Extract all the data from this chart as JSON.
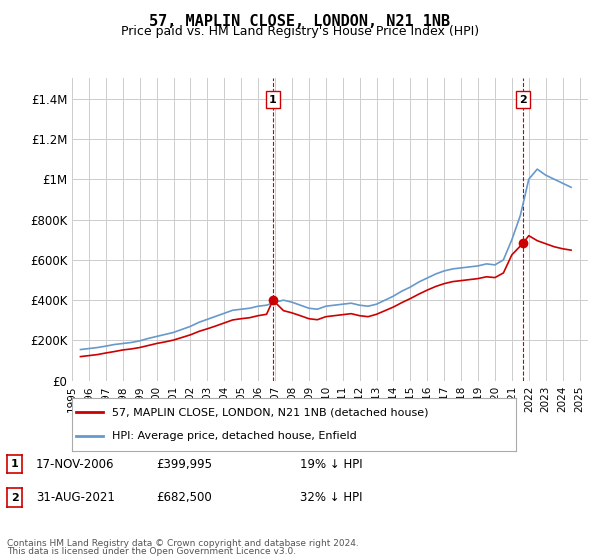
{
  "title": "57, MAPLIN CLOSE, LONDON, N21 1NB",
  "subtitle": "Price paid vs. HM Land Registry's House Price Index (HPI)",
  "red_label": "57, MAPLIN CLOSE, LONDON, N21 1NB (detached house)",
  "blue_label": "HPI: Average price, detached house, Enfield",
  "annotation1": {
    "num": "1",
    "date": "17-NOV-2006",
    "price": "£399,995",
    "pct": "19% ↓ HPI",
    "x_year": 2006.88
  },
  "annotation2": {
    "num": "2",
    "date": "31-AUG-2021",
    "price": "£682,500",
    "pct": "32% ↓ HPI",
    "x_year": 2021.66
  },
  "footer1": "Contains HM Land Registry data © Crown copyright and database right 2024.",
  "footer2": "This data is licensed under the Open Government Licence v3.0.",
  "ylim": [
    0,
    1500000
  ],
  "yticks": [
    0,
    200000,
    400000,
    600000,
    800000,
    1000000,
    1200000,
    1400000
  ],
  "ytick_labels": [
    "£0",
    "£200K",
    "£400K",
    "£600K",
    "£800K",
    "£1M",
    "£1.2M",
    "£1.4M"
  ],
  "xlim_start": 1995.0,
  "xlim_end": 2025.5,
  "red_color": "#cc0000",
  "blue_color": "#6699cc",
  "grid_color": "#cccccc",
  "background_color": "#ffffff",
  "vline_color": "#cc0000",
  "hpi_data": {
    "years": [
      1995.5,
      1996.0,
      1996.5,
      1997.0,
      1997.5,
      1998.0,
      1998.5,
      1999.0,
      1999.5,
      2000.0,
      2000.5,
      2001.0,
      2001.5,
      2002.0,
      2002.5,
      2003.0,
      2003.5,
      2004.0,
      2004.5,
      2005.0,
      2005.5,
      2006.0,
      2006.5,
      2007.0,
      2007.5,
      2008.0,
      2008.5,
      2009.0,
      2009.5,
      2010.0,
      2010.5,
      2011.0,
      2011.5,
      2012.0,
      2012.5,
      2013.0,
      2013.5,
      2014.0,
      2014.5,
      2015.0,
      2015.5,
      2016.0,
      2016.5,
      2017.0,
      2017.5,
      2018.0,
      2018.5,
      2019.0,
      2019.5,
      2020.0,
      2020.5,
      2021.0,
      2021.5,
      2022.0,
      2022.5,
      2023.0,
      2023.5,
      2024.0,
      2024.5
    ],
    "values": [
      155000,
      160000,
      165000,
      172000,
      180000,
      185000,
      190000,
      198000,
      210000,
      220000,
      230000,
      240000,
      255000,
      270000,
      290000,
      305000,
      320000,
      335000,
      350000,
      355000,
      360000,
      370000,
      375000,
      390000,
      400000,
      390000,
      375000,
      360000,
      355000,
      370000,
      375000,
      380000,
      385000,
      375000,
      370000,
      380000,
      400000,
      420000,
      445000,
      465000,
      490000,
      510000,
      530000,
      545000,
      555000,
      560000,
      565000,
      570000,
      580000,
      575000,
      600000,
      700000,
      820000,
      1000000,
      1050000,
      1020000,
      1000000,
      980000,
      960000
    ]
  },
  "red_data": {
    "years": [
      1995.5,
      1996.0,
      1996.5,
      1997.0,
      1997.5,
      1998.0,
      1998.5,
      1999.0,
      1999.5,
      2000.0,
      2000.5,
      2001.0,
      2001.5,
      2002.0,
      2002.5,
      2003.0,
      2003.5,
      2004.0,
      2004.5,
      2005.0,
      2005.5,
      2006.0,
      2006.5,
      2006.88,
      2007.5,
      2008.0,
      2008.5,
      2009.0,
      2009.5,
      2010.0,
      2010.5,
      2011.0,
      2011.5,
      2012.0,
      2012.5,
      2013.0,
      2013.5,
      2014.0,
      2014.5,
      2015.0,
      2015.5,
      2016.0,
      2016.5,
      2017.0,
      2017.5,
      2018.0,
      2018.5,
      2019.0,
      2019.5,
      2020.0,
      2020.5,
      2021.0,
      2021.66,
      2022.0,
      2022.5,
      2023.0,
      2023.5,
      2024.0,
      2024.5
    ],
    "values": [
      120000,
      125000,
      130000,
      138000,
      145000,
      153000,
      158000,
      165000,
      175000,
      185000,
      193000,
      202000,
      215000,
      228000,
      245000,
      258000,
      272000,
      287000,
      302000,
      308000,
      313000,
      323000,
      330000,
      399995,
      348000,
      337000,
      323000,
      308000,
      303000,
      318000,
      323000,
      328000,
      333000,
      323000,
      318000,
      330000,
      348000,
      366000,
      388000,
      408000,
      430000,
      450000,
      468000,
      482000,
      492000,
      497000,
      502000,
      507000,
      516000,
      512000,
      535000,
      625000,
      682500,
      720000,
      695000,
      680000,
      665000,
      655000,
      648000
    ]
  }
}
